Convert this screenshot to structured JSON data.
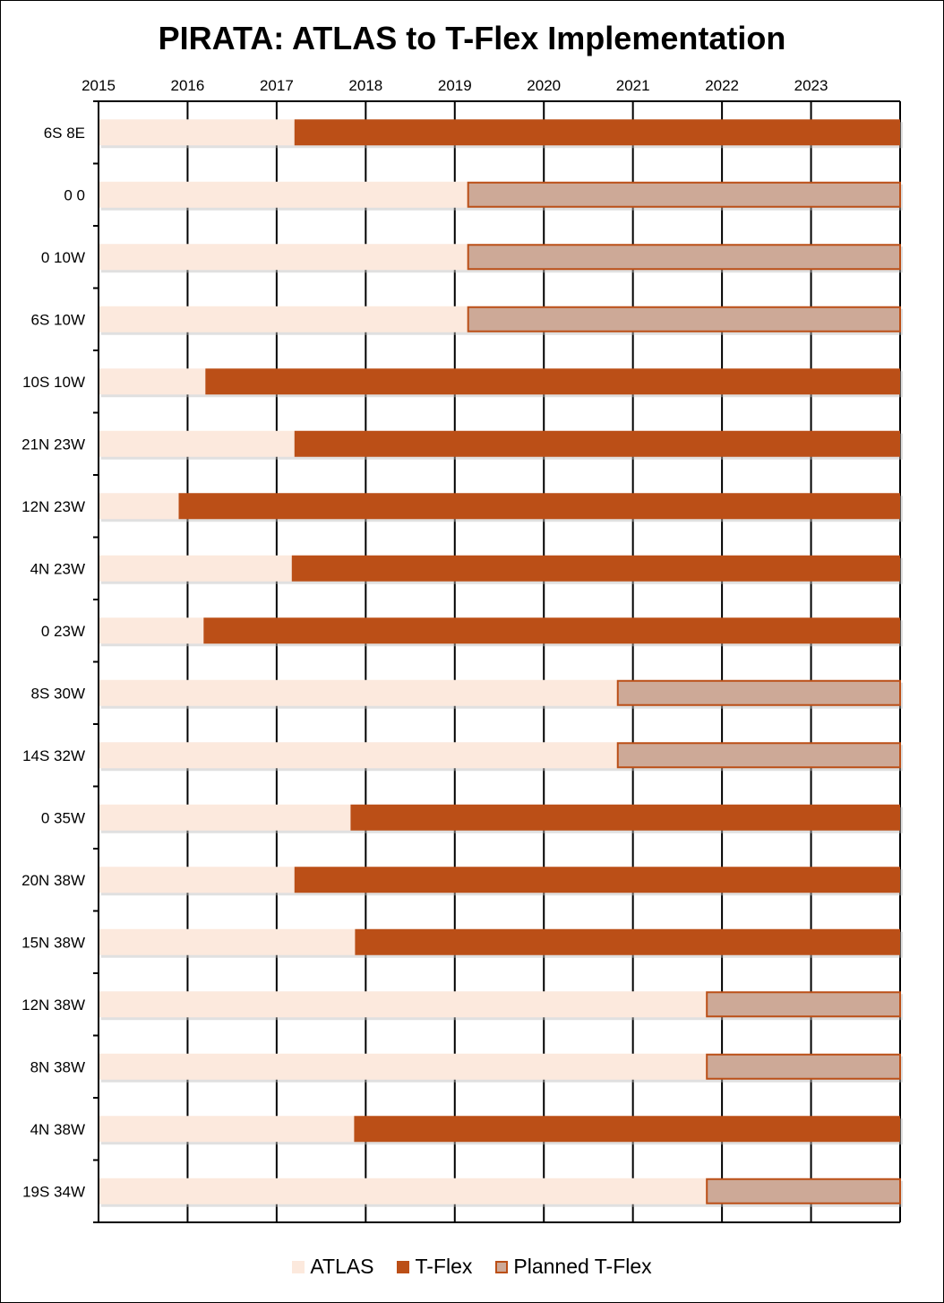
{
  "chart_data": {
    "type": "bar",
    "orientation": "horizontal-stacked",
    "title": "PIRATA: ATLAS to T-Flex Implementation",
    "x_ticks": [
      "2015",
      "2016",
      "2017",
      "2018",
      "2019",
      "2020",
      "2021",
      "2022",
      "2023"
    ],
    "xlim": [
      2015,
      2024
    ],
    "grid": true,
    "legend_position": "bottom",
    "colors": {
      "ATLAS": "#FCE9DD",
      "T-Flex": "#BB4F17",
      "Planned T-Flex": "#CDA997",
      "Planned T-Flex edge": "#BB4F17"
    },
    "series_names": [
      "ATLAS",
      "T-Flex",
      "Planned T-Flex"
    ],
    "categories": [
      "6S 8E",
      "0 0",
      "0 10W",
      "6S 10W",
      "10S 10W",
      "21N 23W",
      "12N 23W",
      "4N 23W",
      "0 23W",
      "8S 30W",
      "14S 32W",
      "0 35W",
      "20N 38W",
      "15N 38W",
      "12N 38W",
      "8N 38W",
      "4N 38W",
      "19S 34W"
    ],
    "transition_year": [
      2017.2,
      2019.15,
      2019.15,
      2019.15,
      2016.2,
      2017.2,
      2015.9,
      2017.17,
      2016.18,
      2020.83,
      2020.83,
      2017.83,
      2017.2,
      2017.88,
      2021.83,
      2021.83,
      2017.87,
      2021.83
    ],
    "status": [
      "T-Flex",
      "Planned T-Flex",
      "Planned T-Flex",
      "Planned T-Flex",
      "T-Flex",
      "T-Flex",
      "T-Flex",
      "T-Flex",
      "T-Flex",
      "Planned T-Flex",
      "Planned T-Flex",
      "T-Flex",
      "T-Flex",
      "T-Flex",
      "Planned T-Flex",
      "Planned T-Flex",
      "T-Flex",
      "Planned T-Flex"
    ]
  }
}
